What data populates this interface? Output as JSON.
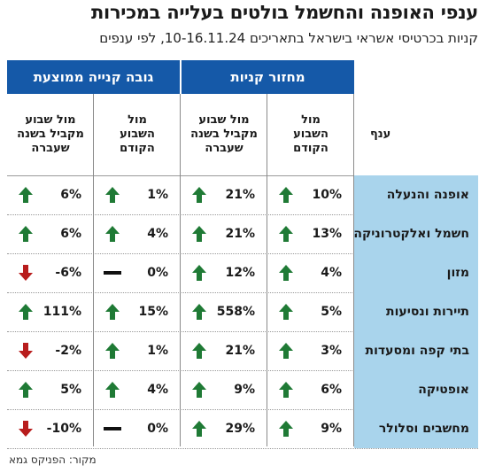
{
  "title": "ענפי האופנה והחשמל בולטים בעלייה במכירות",
  "subtitle": "קניות בכרטיסי אשראי בישראל בתאריכים 10-16.11.24, לפי ענפים",
  "groups": {
    "turnover": "מחזור קניות",
    "avg_purchase": "גובה קנייה ממוצעת"
  },
  "subheaders": {
    "category": "ענף",
    "prev_week": "מול\nהשבוע\nהקודם",
    "last_year": "מול שבוע\nמקביל בשנה\nשעברה"
  },
  "colors": {
    "header_blue": "#1559a8",
    "category_bg": "#a9d4ec",
    "up": "#1f7a35",
    "down": "#b81d1d",
    "flat": "#111111"
  },
  "rows": [
    {
      "category": "אופנה והנעלה",
      "t_prev": "10%",
      "t_prev_dir": "up",
      "t_year": "21%",
      "t_year_dir": "up",
      "a_prev": "1%",
      "a_prev_dir": "up",
      "a_year": "6%",
      "a_year_dir": "up"
    },
    {
      "category": "חשמל ואלקטרוניקה",
      "t_prev": "13%",
      "t_prev_dir": "up",
      "t_year": "21%",
      "t_year_dir": "up",
      "a_prev": "4%",
      "a_prev_dir": "up",
      "a_year": "6%",
      "a_year_dir": "up"
    },
    {
      "category": "מזון",
      "t_prev": "4%",
      "t_prev_dir": "up",
      "t_year": "12%",
      "t_year_dir": "up",
      "a_prev": "0%",
      "a_prev_dir": "flat",
      "a_year": "-6%",
      "a_year_dir": "down"
    },
    {
      "category": "תיירות ונסיעות",
      "t_prev": "5%",
      "t_prev_dir": "up",
      "t_year": "558%",
      "t_year_dir": "up",
      "a_prev": "15%",
      "a_prev_dir": "up",
      "a_year": "111%",
      "a_year_dir": "up"
    },
    {
      "category": "בתי קפה ומסעדות",
      "t_prev": "3%",
      "t_prev_dir": "up",
      "t_year": "21%",
      "t_year_dir": "up",
      "a_prev": "1%",
      "a_prev_dir": "up",
      "a_year": "-2%",
      "a_year_dir": "down"
    },
    {
      "category": "אופטיקה",
      "t_prev": "6%",
      "t_prev_dir": "up",
      "t_year": "9%",
      "t_year_dir": "up",
      "a_prev": "4%",
      "a_prev_dir": "up",
      "a_year": "5%",
      "a_year_dir": "up"
    },
    {
      "category": "מחשבים וסלולר",
      "t_prev": "9%",
      "t_prev_dir": "up",
      "t_year": "29%",
      "t_year_dir": "up",
      "a_prev": "0%",
      "a_prev_dir": "flat",
      "a_year": "-10%",
      "a_year_dir": "down"
    }
  ],
  "source": "מקור: הפניקס גמא"
}
